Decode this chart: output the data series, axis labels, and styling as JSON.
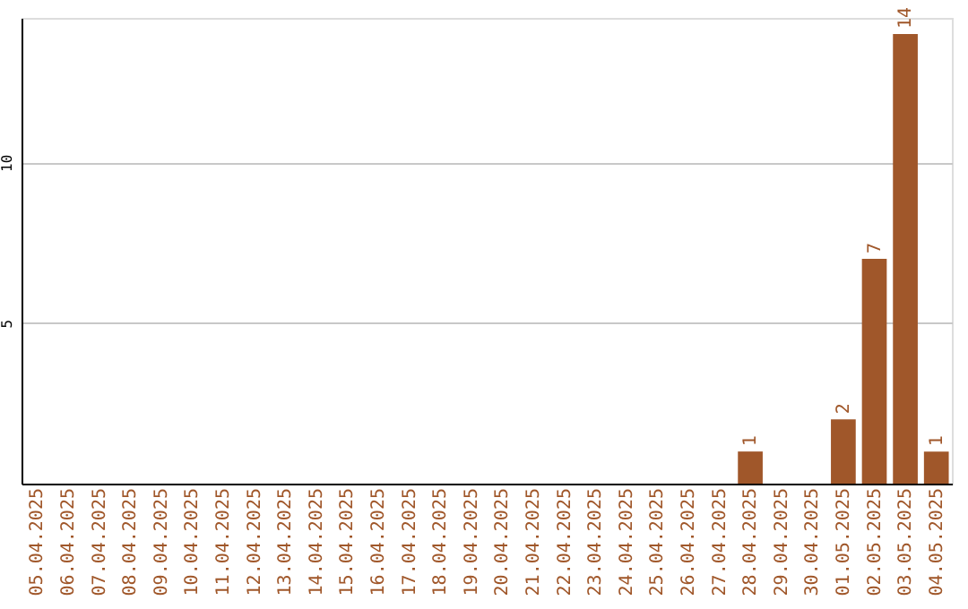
{
  "chart_data": {
    "type": "bar",
    "categories": [
      "05.04.2025",
      "06.04.2025",
      "07.04.2025",
      "08.04.2025",
      "09.04.2025",
      "10.04.2025",
      "11.04.2025",
      "12.04.2025",
      "13.04.2025",
      "14.04.2025",
      "15.04.2025",
      "16.04.2025",
      "17.04.2025",
      "18.04.2025",
      "19.04.2025",
      "20.04.2025",
      "21.04.2025",
      "22.04.2025",
      "23.04.2025",
      "24.04.2025",
      "25.04.2025",
      "26.04.2025",
      "27.04.2025",
      "28.04.2025",
      "29.04.2025",
      "30.04.2025",
      "01.05.2025",
      "02.05.2025",
      "03.05.2025",
      "04.05.2025"
    ],
    "values": [
      0,
      0,
      0,
      0,
      0,
      0,
      0,
      0,
      0,
      0,
      0,
      0,
      0,
      0,
      0,
      0,
      0,
      0,
      0,
      0,
      0,
      0,
      0,
      1,
      0,
      0,
      2,
      7,
      14,
      1
    ],
    "value_labels": [
      null,
      null,
      null,
      null,
      null,
      null,
      null,
      null,
      null,
      null,
      null,
      null,
      null,
      null,
      null,
      null,
      null,
      null,
      null,
      null,
      null,
      null,
      null,
      "1",
      null,
      null,
      "2",
      "7",
      "14",
      "1"
    ],
    "color": "#a0572a",
    "ylim": [
      0,
      14.5
    ],
    "yticks": [
      5,
      10
    ],
    "grid": "y"
  }
}
